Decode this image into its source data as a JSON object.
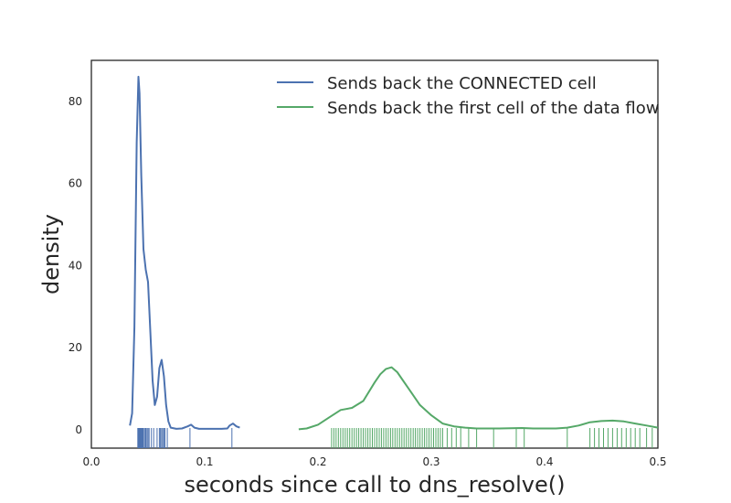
{
  "chart_data": {
    "type": "line",
    "subtype": "kde-with-rug",
    "title": "",
    "xlabel": "seconds since call to dns_resolve()",
    "ylabel": "density",
    "xlim": [
      0.0,
      0.5
    ],
    "ylim": [
      -4.5,
      90
    ],
    "xticks": [
      0.0,
      0.1,
      0.2,
      0.3,
      0.4,
      0.5
    ],
    "xtick_labels": [
      "0.0",
      "0.1",
      "0.2",
      "0.3",
      "0.4",
      "0.5"
    ],
    "yticks": [
      0,
      20,
      40,
      60,
      80
    ],
    "ytick_labels": [
      "0",
      "20",
      "40",
      "60",
      "80"
    ],
    "grid": false,
    "legend_position": "top-right",
    "series": [
      {
        "name": "Sends back the CONNECTED cell",
        "color": "#4c72b0",
        "x": [
          0.034,
          0.036,
          0.038,
          0.04,
          0.0415,
          0.0425,
          0.044,
          0.046,
          0.048,
          0.05,
          0.052,
          0.054,
          0.056,
          0.058,
          0.06,
          0.062,
          0.064,
          0.066,
          0.068,
          0.07,
          0.075,
          0.08,
          0.085,
          0.088,
          0.091,
          0.095,
          0.1,
          0.105,
          0.11,
          0.115,
          0.12,
          0.122,
          0.125,
          0.128,
          0.131
        ],
        "y": [
          1,
          4,
          25,
          70,
          86,
          82,
          62,
          44,
          39,
          36,
          24,
          12,
          6,
          8,
          15,
          17,
          13,
          6,
          2,
          0.5,
          0.2,
          0.3,
          0.8,
          1.2,
          0.5,
          0.2,
          0.2,
          0.2,
          0.2,
          0.2,
          0.3,
          1.0,
          1.5,
          0.8,
          0.5
        ],
        "rug": [
          0.041,
          0.0415,
          0.042,
          0.0425,
          0.043,
          0.0435,
          0.044,
          0.0445,
          0.045,
          0.0455,
          0.046,
          0.047,
          0.048,
          0.049,
          0.05,
          0.051,
          0.053,
          0.055,
          0.058,
          0.06,
          0.061,
          0.062,
          0.063,
          0.064,
          0.065,
          0.067,
          0.087,
          0.124
        ]
      },
      {
        "name": "Sends back the first cell of the data flow",
        "color": "#55a868",
        "x": [
          0.183,
          0.19,
          0.2,
          0.21,
          0.22,
          0.23,
          0.24,
          0.25,
          0.255,
          0.26,
          0.265,
          0.27,
          0.275,
          0.28,
          0.29,
          0.3,
          0.31,
          0.32,
          0.33,
          0.34,
          0.35,
          0.36,
          0.37,
          0.38,
          0.39,
          0.4,
          0.41,
          0.42,
          0.43,
          0.44,
          0.45,
          0.46,
          0.47,
          0.48,
          0.49,
          0.5
        ],
        "y": [
          0.1,
          0.3,
          1.2,
          3,
          4.8,
          5.3,
          7,
          11.5,
          13.5,
          14.8,
          15.2,
          14,
          12,
          10,
          6,
          3.5,
          1.5,
          0.8,
          0.5,
          0.3,
          0.3,
          0.3,
          0.35,
          0.4,
          0.3,
          0.3,
          0.3,
          0.5,
          1.0,
          1.8,
          2.1,
          2.2,
          2.0,
          1.5,
          1.0,
          0.5
        ],
        "rug": [
          0.212,
          0.214,
          0.216,
          0.218,
          0.22,
          0.222,
          0.224,
          0.226,
          0.228,
          0.23,
          0.232,
          0.234,
          0.236,
          0.238,
          0.24,
          0.242,
          0.244,
          0.246,
          0.248,
          0.25,
          0.252,
          0.254,
          0.256,
          0.258,
          0.26,
          0.262,
          0.264,
          0.266,
          0.268,
          0.27,
          0.272,
          0.274,
          0.276,
          0.278,
          0.28,
          0.282,
          0.284,
          0.286,
          0.288,
          0.29,
          0.292,
          0.294,
          0.296,
          0.298,
          0.3,
          0.302,
          0.304,
          0.306,
          0.308,
          0.31,
          0.314,
          0.318,
          0.322,
          0.326,
          0.333,
          0.34,
          0.355,
          0.375,
          0.382,
          0.42,
          0.44,
          0.444,
          0.448,
          0.452,
          0.456,
          0.46,
          0.464,
          0.468,
          0.472,
          0.476,
          0.48,
          0.484,
          0.49,
          0.495
        ]
      }
    ]
  }
}
